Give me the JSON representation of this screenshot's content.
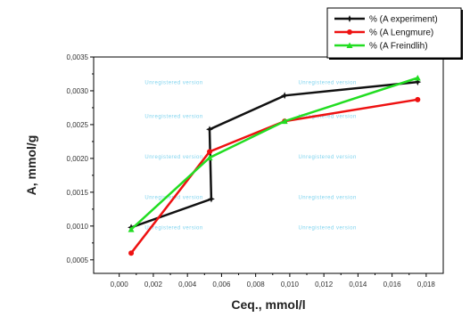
{
  "chart_data": {
    "type": "line",
    "xlabel": "Ceq., mmol/l",
    "ylabel": "A, mmol/g",
    "xlim": [
      -0.0015,
      0.019
    ],
    "ylim": [
      0.0003,
      0.0035
    ],
    "x_ticks": [
      0.0,
      0.002,
      0.004,
      0.006,
      0.008,
      0.01,
      0.012,
      0.014,
      0.016,
      0.018
    ],
    "x_tick_labels": [
      "0,000",
      "0,002",
      "0,004",
      "0,006",
      "0,008",
      "0,010",
      "0,012",
      "0,014",
      "0,016",
      "0,018"
    ],
    "y_ticks": [
      0.0005,
      0.001,
      0.0015,
      0.002,
      0.0025,
      0.003,
      0.0035
    ],
    "y_tick_labels": [
      "0,0005",
      "0,0010",
      "0,0015",
      "0,0020",
      "0,0025",
      "0,0030",
      "0,0035"
    ],
    "legend_position": "top-right",
    "watermark": "Unregistered version",
    "series": [
      {
        "name": "% (A experiment)",
        "color": "#111111",
        "marker": "star",
        "points": [
          {
            "x": 0.0007,
            "y": 0.00098
          },
          {
            "x": 0.0054,
            "y": 0.0014
          },
          {
            "x": 0.0053,
            "y": 0.00243
          },
          {
            "x": 0.0097,
            "y": 0.00293
          },
          {
            "x": 0.0175,
            "y": 0.00313
          }
        ]
      },
      {
        "name": "% (A Lengmure)",
        "color": "#ee1111",
        "marker": "circle",
        "points": [
          {
            "x": 0.0007,
            "y": 0.0006
          },
          {
            "x": 0.0053,
            "y": 0.0021
          },
          {
            "x": 0.0097,
            "y": 0.00255
          },
          {
            "x": 0.0175,
            "y": 0.00287
          }
        ]
      },
      {
        "name": "% (A Freindlih)",
        "color": "#22dd22",
        "marker": "triangle",
        "points": [
          {
            "x": 0.0007,
            "y": 0.00095
          },
          {
            "x": 0.0053,
            "y": 0.00201
          },
          {
            "x": 0.0097,
            "y": 0.00255
          },
          {
            "x": 0.0175,
            "y": 0.00319
          }
        ]
      }
    ]
  }
}
